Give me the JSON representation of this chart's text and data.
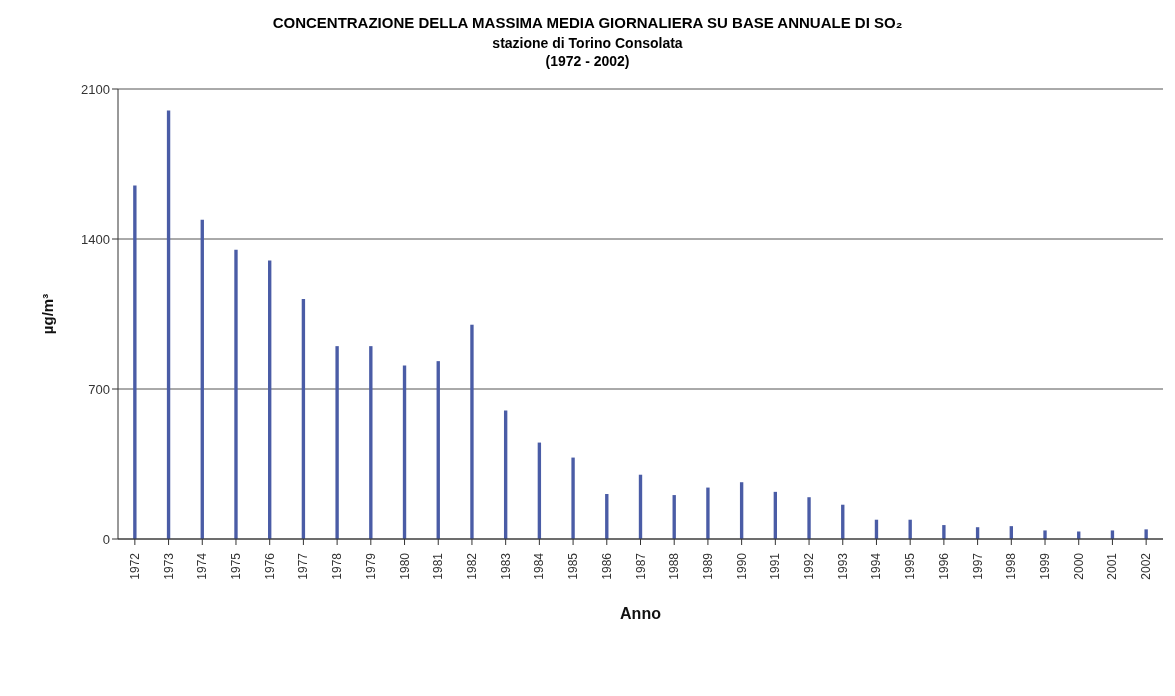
{
  "chart_data": {
    "type": "bar",
    "title": "CONCENTRAZIONE DELLA MASSIMA MEDIA GIORNALIERA SU BASE ANNUALE DI SO₂",
    "subtitle": "stazione di Torino Consolata",
    "annotations": [
      "(1972 - 2002)"
    ],
    "xlabel": "Anno",
    "ylabel": "µg/m³",
    "categories": [
      "1972",
      "1973",
      "1974",
      "1975",
      "1976",
      "1977",
      "1978",
      "1979",
      "1980",
      "1981",
      "1982",
      "1983",
      "1984",
      "1985",
      "1986",
      "1987",
      "1988",
      "1989",
      "1990",
      "1991",
      "1992",
      "1993",
      "1994",
      "1995",
      "1996",
      "1997",
      "1998",
      "1999",
      "2000",
      "2001",
      "2002"
    ],
    "values": [
      1650,
      2000,
      1490,
      1350,
      1300,
      1120,
      900,
      900,
      810,
      830,
      1000,
      600,
      450,
      380,
      210,
      300,
      205,
      240,
      265,
      220,
      195,
      160,
      90,
      90,
      65,
      55,
      60,
      40,
      35,
      40,
      45
    ],
    "color": "#4a5ca6",
    "ylim": [
      0,
      2100
    ],
    "yticks": [
      0,
      700,
      1400,
      2100
    ],
    "grid": "y"
  }
}
